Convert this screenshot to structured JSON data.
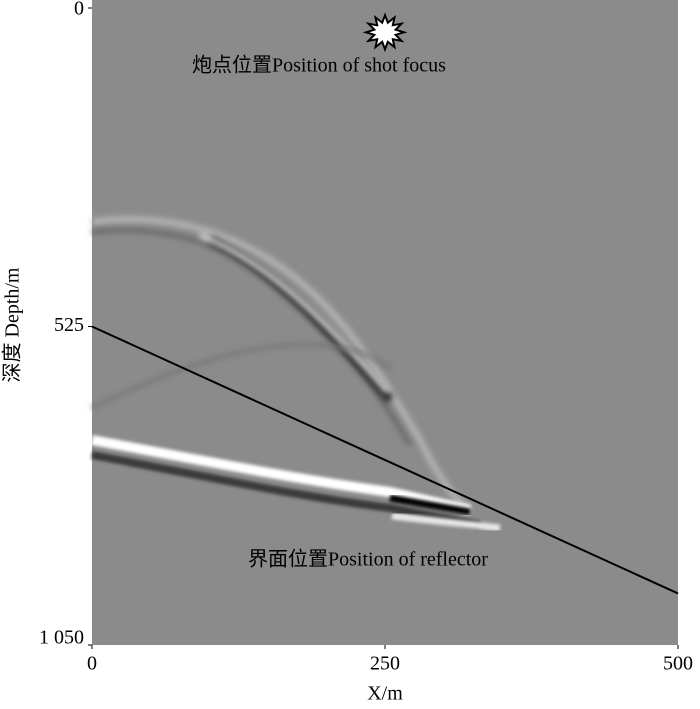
{
  "chart_data": {
    "type": "wavefield",
    "xlabel": "X/m",
    "ylabel": "深度 Depth/m",
    "xlim": [
      0,
      500
    ],
    "ylim": [
      0,
      1050
    ],
    "xticks": [
      0,
      250,
      500
    ],
    "yticks": [
      0,
      525,
      {
        "value": 1050,
        "label": "1 050"
      }
    ],
    "y_inverted": true,
    "background": "#8b8b8b",
    "shot": {
      "label": "炮点位置Position of shot focus",
      "x": 250,
      "y": 40
    },
    "reflector": {
      "label": "界面位置Position of reflector",
      "x": [
        0,
        500
      ],
      "y": [
        525,
        965
      ],
      "color": "#000000"
    }
  }
}
